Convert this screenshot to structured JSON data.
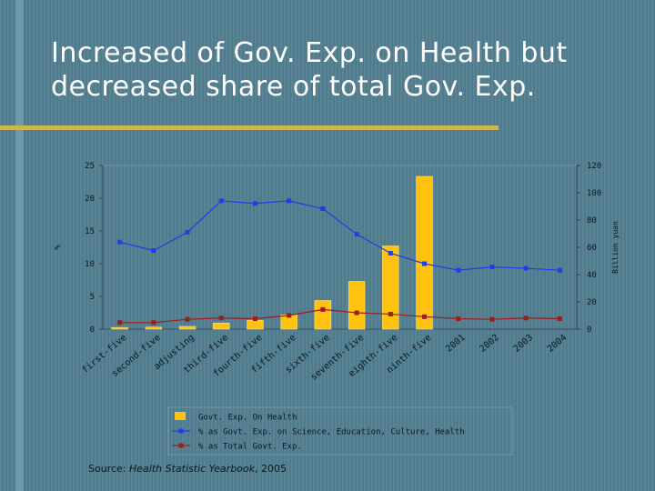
{
  "slide": {
    "title_line1": "Increased of Gov. Exp. on Health but",
    "title_line2": "decreased share of total Gov. Exp.",
    "source_prefix": "Source: ",
    "source_title": "Health Statistic Yearbook",
    "source_suffix": ", 2005"
  },
  "colors": {
    "background": "#527f91",
    "accent_bar": "#c9b84f",
    "bar": "#ffc20e",
    "line_science": "#1f3de8",
    "line_total": "#9b1d1d",
    "axis_text": "#0d1820"
  },
  "chart_data": {
    "type": "bar",
    "categories": [
      "first-five",
      "second-five",
      "adjusting",
      "third-five",
      "fourth-five",
      "fifth-five",
      "sixth-five",
      "seventh-five",
      "eighth-five",
      "ninth-five",
      "2001",
      "2002",
      "2003",
      "2004"
    ],
    "category_labels": [
      "first-five",
      "second-five",
      "adjusting",
      "third-five",
      "fourth-five",
      "fifth-five",
      "sixth-five",
      "seventh-five",
      "eighth-five",
      "ninth-five",
      "2001",
      "2002",
      "2003",
      "2004"
    ],
    "ylabel": "%",
    "y2label": "Billion yuan",
    "ylim": [
      0,
      25
    ],
    "y2lim": [
      0,
      120
    ],
    "yticks": [
      "0",
      "5",
      "10",
      "15",
      "20",
      "25"
    ],
    "y2ticks": [
      "0",
      "20",
      "40",
      "60",
      "80",
      "100",
      "120"
    ],
    "legend_position": "bottom",
    "series": [
      {
        "name": "Govt. Exp. On Health",
        "type": "bar",
        "axis": "right",
        "values": [
          1.2,
          1.5,
          2.0,
          4.5,
          6.5,
          10.5,
          21.0,
          35.0,
          61.0,
          112.0,
          null,
          null,
          null,
          null
        ]
      },
      {
        "name": "% as Govt. Exp. on Science, Education, Culture, Health",
        "type": "line",
        "axis": "left",
        "values": [
          13.3,
          12.0,
          14.8,
          19.6,
          19.2,
          19.6,
          18.4,
          14.5,
          11.6,
          10.0,
          9.0,
          9.5,
          9.3,
          9.0
        ]
      },
      {
        "name": "% as Total Govt. Exp.",
        "type": "line",
        "axis": "left",
        "values": [
          1.0,
          1.0,
          1.5,
          1.7,
          1.6,
          2.1,
          3.0,
          2.5,
          2.3,
          1.9,
          1.6,
          1.5,
          1.7,
          1.6
        ]
      }
    ]
  }
}
